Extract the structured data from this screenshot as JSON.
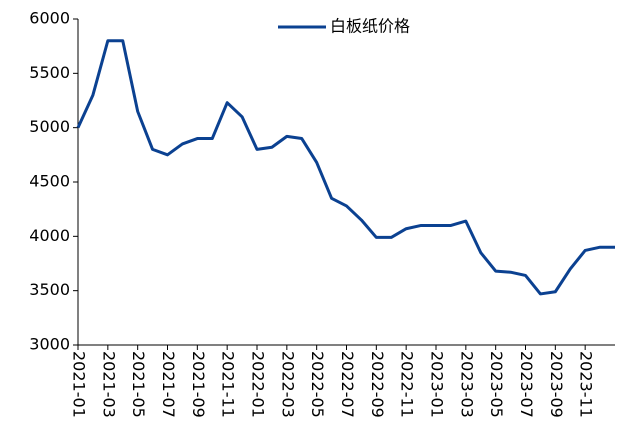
{
  "chart_data": {
    "type": "line",
    "categories": [
      "2021-01",
      null,
      "2021-03",
      null,
      "2021-05",
      null,
      "2021-07",
      null,
      "2021-09",
      null,
      "2021-11",
      null,
      "2022-01",
      null,
      "2022-03",
      null,
      "2022-05",
      null,
      "2022-07",
      null,
      "2022-09",
      null,
      "2022-11",
      null,
      "2023-01",
      null,
      "2023-03",
      null,
      "2023-05",
      null,
      "2023-07",
      null,
      "2023-09",
      null,
      "2023-11",
      null,
      null
    ],
    "series": [
      {
        "name": "白板纸价格",
        "color": "#0b4191",
        "values": [
          5000,
          5300,
          5800,
          5800,
          5150,
          4800,
          4750,
          4850,
          4900,
          4900,
          5230,
          5100,
          4800,
          4820,
          4920,
          4900,
          4680,
          4350,
          4280,
          4150,
          3990,
          3990,
          4070,
          4100,
          4100,
          4100,
          4140,
          3850,
          3680,
          3670,
          3640,
          3470,
          3490,
          3700,
          3870,
          3900,
          3900
        ]
      }
    ],
    "ylim": [
      3000,
      6000
    ],
    "yticks": [
      3000,
      3500,
      4000,
      4500,
      5000,
      5500,
      6000
    ],
    "legend": "top"
  }
}
